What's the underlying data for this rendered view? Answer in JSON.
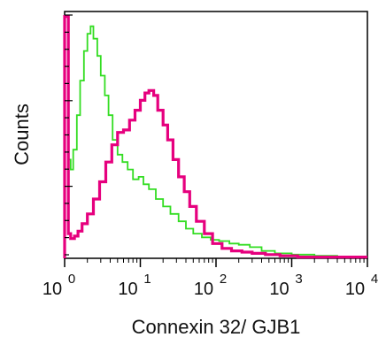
{
  "chart_data": {
    "type": "line",
    "title": "",
    "xlabel": "Connexin 32/ GJB1",
    "ylabel": "Counts",
    "x_scale": "log",
    "xlim": [
      1,
      10000
    ],
    "ylim": [
      0,
      100
    ],
    "grid": false,
    "x_ticks": [
      {
        "base": "10",
        "exp": "0",
        "value": 1
      },
      {
        "base": "10",
        "exp": "1",
        "value": 10
      },
      {
        "base": "10",
        "exp": "2",
        "value": 100
      },
      {
        "base": "10",
        "exp": "3",
        "value": 1000
      },
      {
        "base": "10",
        "exp": "4",
        "value": 10000
      }
    ],
    "series": [
      {
        "color": "#33dd22",
        "x": [
          1.0,
          1.12,
          1.2,
          1.3,
          1.45,
          1.6,
          1.8,
          2.0,
          2.2,
          2.4,
          2.7,
          3.0,
          3.4,
          3.8,
          4.3,
          5.0,
          5.8,
          6.8,
          8.0,
          9.5,
          11,
          13,
          16,
          20,
          25,
          32,
          40,
          50,
          65,
          85,
          110,
          150,
          200,
          280,
          400,
          600,
          1000,
          2000,
          4000,
          10000
        ],
        "y": [
          98,
          40,
          36,
          44,
          58,
          72,
          84,
          91,
          94,
          89,
          82,
          74,
          66,
          58,
          48,
          42,
          39,
          36,
          32,
          33,
          30,
          28,
          24,
          21,
          18,
          15,
          12,
          10,
          8.5,
          7.5,
          7,
          6,
          5.5,
          4.5,
          3,
          2,
          1.5,
          1,
          0.5,
          0.5
        ]
      },
      {
        "color": "#e6007e",
        "x": [
          1.0,
          1.12,
          1.2,
          1.35,
          1.5,
          1.7,
          2.0,
          2.4,
          2.9,
          3.5,
          4.2,
          5.0,
          6.0,
          7.2,
          8.5,
          10,
          11.5,
          13,
          15,
          17,
          20,
          23,
          27,
          32,
          38,
          45,
          55,
          70,
          90,
          120,
          160,
          220,
          300,
          450,
          700,
          1200,
          2500,
          5000,
          10000
        ],
        "y": [
          98,
          10,
          8,
          9,
          11,
          14,
          18,
          24,
          31,
          39,
          46,
          51,
          52,
          56,
          60,
          64,
          67,
          68,
          66,
          60,
          54,
          48,
          40,
          33,
          27,
          21,
          15,
          10,
          6,
          4,
          3,
          2.5,
          2,
          1.5,
          1,
          0.5,
          0.5,
          0.5,
          0.5
        ]
      }
    ]
  }
}
